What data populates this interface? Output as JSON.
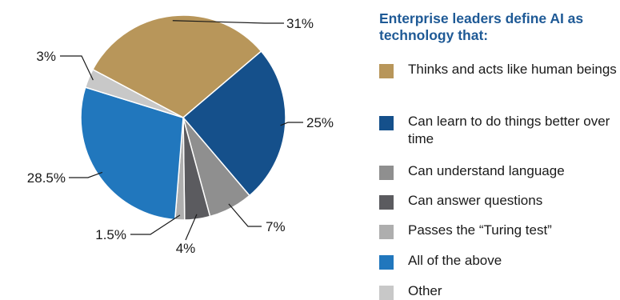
{
  "chart_data": {
    "type": "pie",
    "title": "Enterprise leaders define AI as technology that:",
    "legend_position": "right",
    "slices": [
      {
        "name": "Thinks and acts like human beings",
        "value": 31,
        "label": "31%",
        "color": "#b8965a"
      },
      {
        "name": "Can learn to do things better over time",
        "value": 25,
        "label": "25%",
        "color": "#15508b"
      },
      {
        "name": "Can understand language",
        "value": 7,
        "label": "7%",
        "color": "#8f8f8f"
      },
      {
        "name": "Can answer questions",
        "value": 4,
        "label": "4%",
        "color": "#5b5b5f"
      },
      {
        "name": "Passes the “Turing test”",
        "value": 1.5,
        "label": "1.5%",
        "color": "#aeaeae"
      },
      {
        "name": "All of the above",
        "value": 28.5,
        "label": "28.5%",
        "color": "#2177bd"
      },
      {
        "name": "Other",
        "value": 3,
        "label": "3%",
        "color": "#c8c8c8"
      }
    ]
  }
}
